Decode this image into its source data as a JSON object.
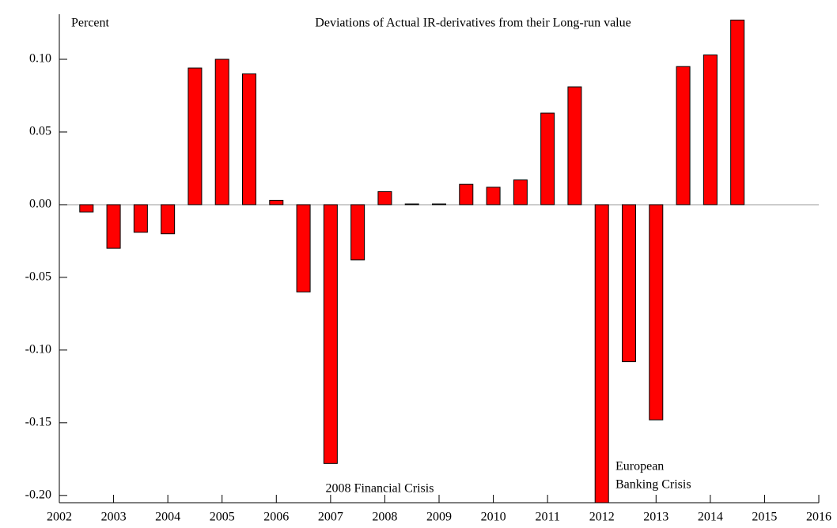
{
  "chart_data": {
    "type": "bar",
    "title": "Deviations of Actual IR-derivatives from their Long-run value",
    "y_label": "Percent",
    "annotations": [
      "2008 Financial Crisis",
      [
        "European",
        "Banking Crisis"
      ]
    ],
    "x": [
      2002.5,
      2003,
      2003.5,
      2004,
      2004.5,
      2005,
      2005.5,
      2006,
      2006.5,
      2007,
      2007.5,
      2008,
      2008.5,
      2009,
      2009.5,
      2010,
      2010.5,
      2011,
      2011.5,
      2012,
      2012.5,
      2013,
      2013.5,
      2014,
      2014.5
    ],
    "values": [
      -0.005,
      -0.03,
      -0.019,
      -0.02,
      0.094,
      0.1,
      0.09,
      0.003,
      -0.06,
      -0.178,
      -0.038,
      0.009,
      0.0005,
      0.0005,
      0.014,
      0.012,
      0.017,
      0.063,
      0.081,
      -0.205,
      -0.108,
      -0.148,
      0.095,
      0.103,
      0.127
    ],
    "color": "#ff0000",
    "xlim": [
      2002,
      2016
    ],
    "xticks": [
      2002,
      2003,
      2004,
      2005,
      2006,
      2007,
      2008,
      2009,
      2010,
      2011,
      2012,
      2013,
      2014,
      2015,
      2016
    ],
    "ylim": [
      -0.205,
      0.131
    ],
    "yticks": [
      {
        "value": 0.1,
        "label": "0.10"
      },
      0.05,
      {
        "value": 0,
        "label": "0.00"
      },
      -0.05,
      {
        "value": -0.1,
        "label": "-0.10"
      },
      -0.15,
      {
        "value": -0.2,
        "label": "-0.20"
      }
    ]
  }
}
